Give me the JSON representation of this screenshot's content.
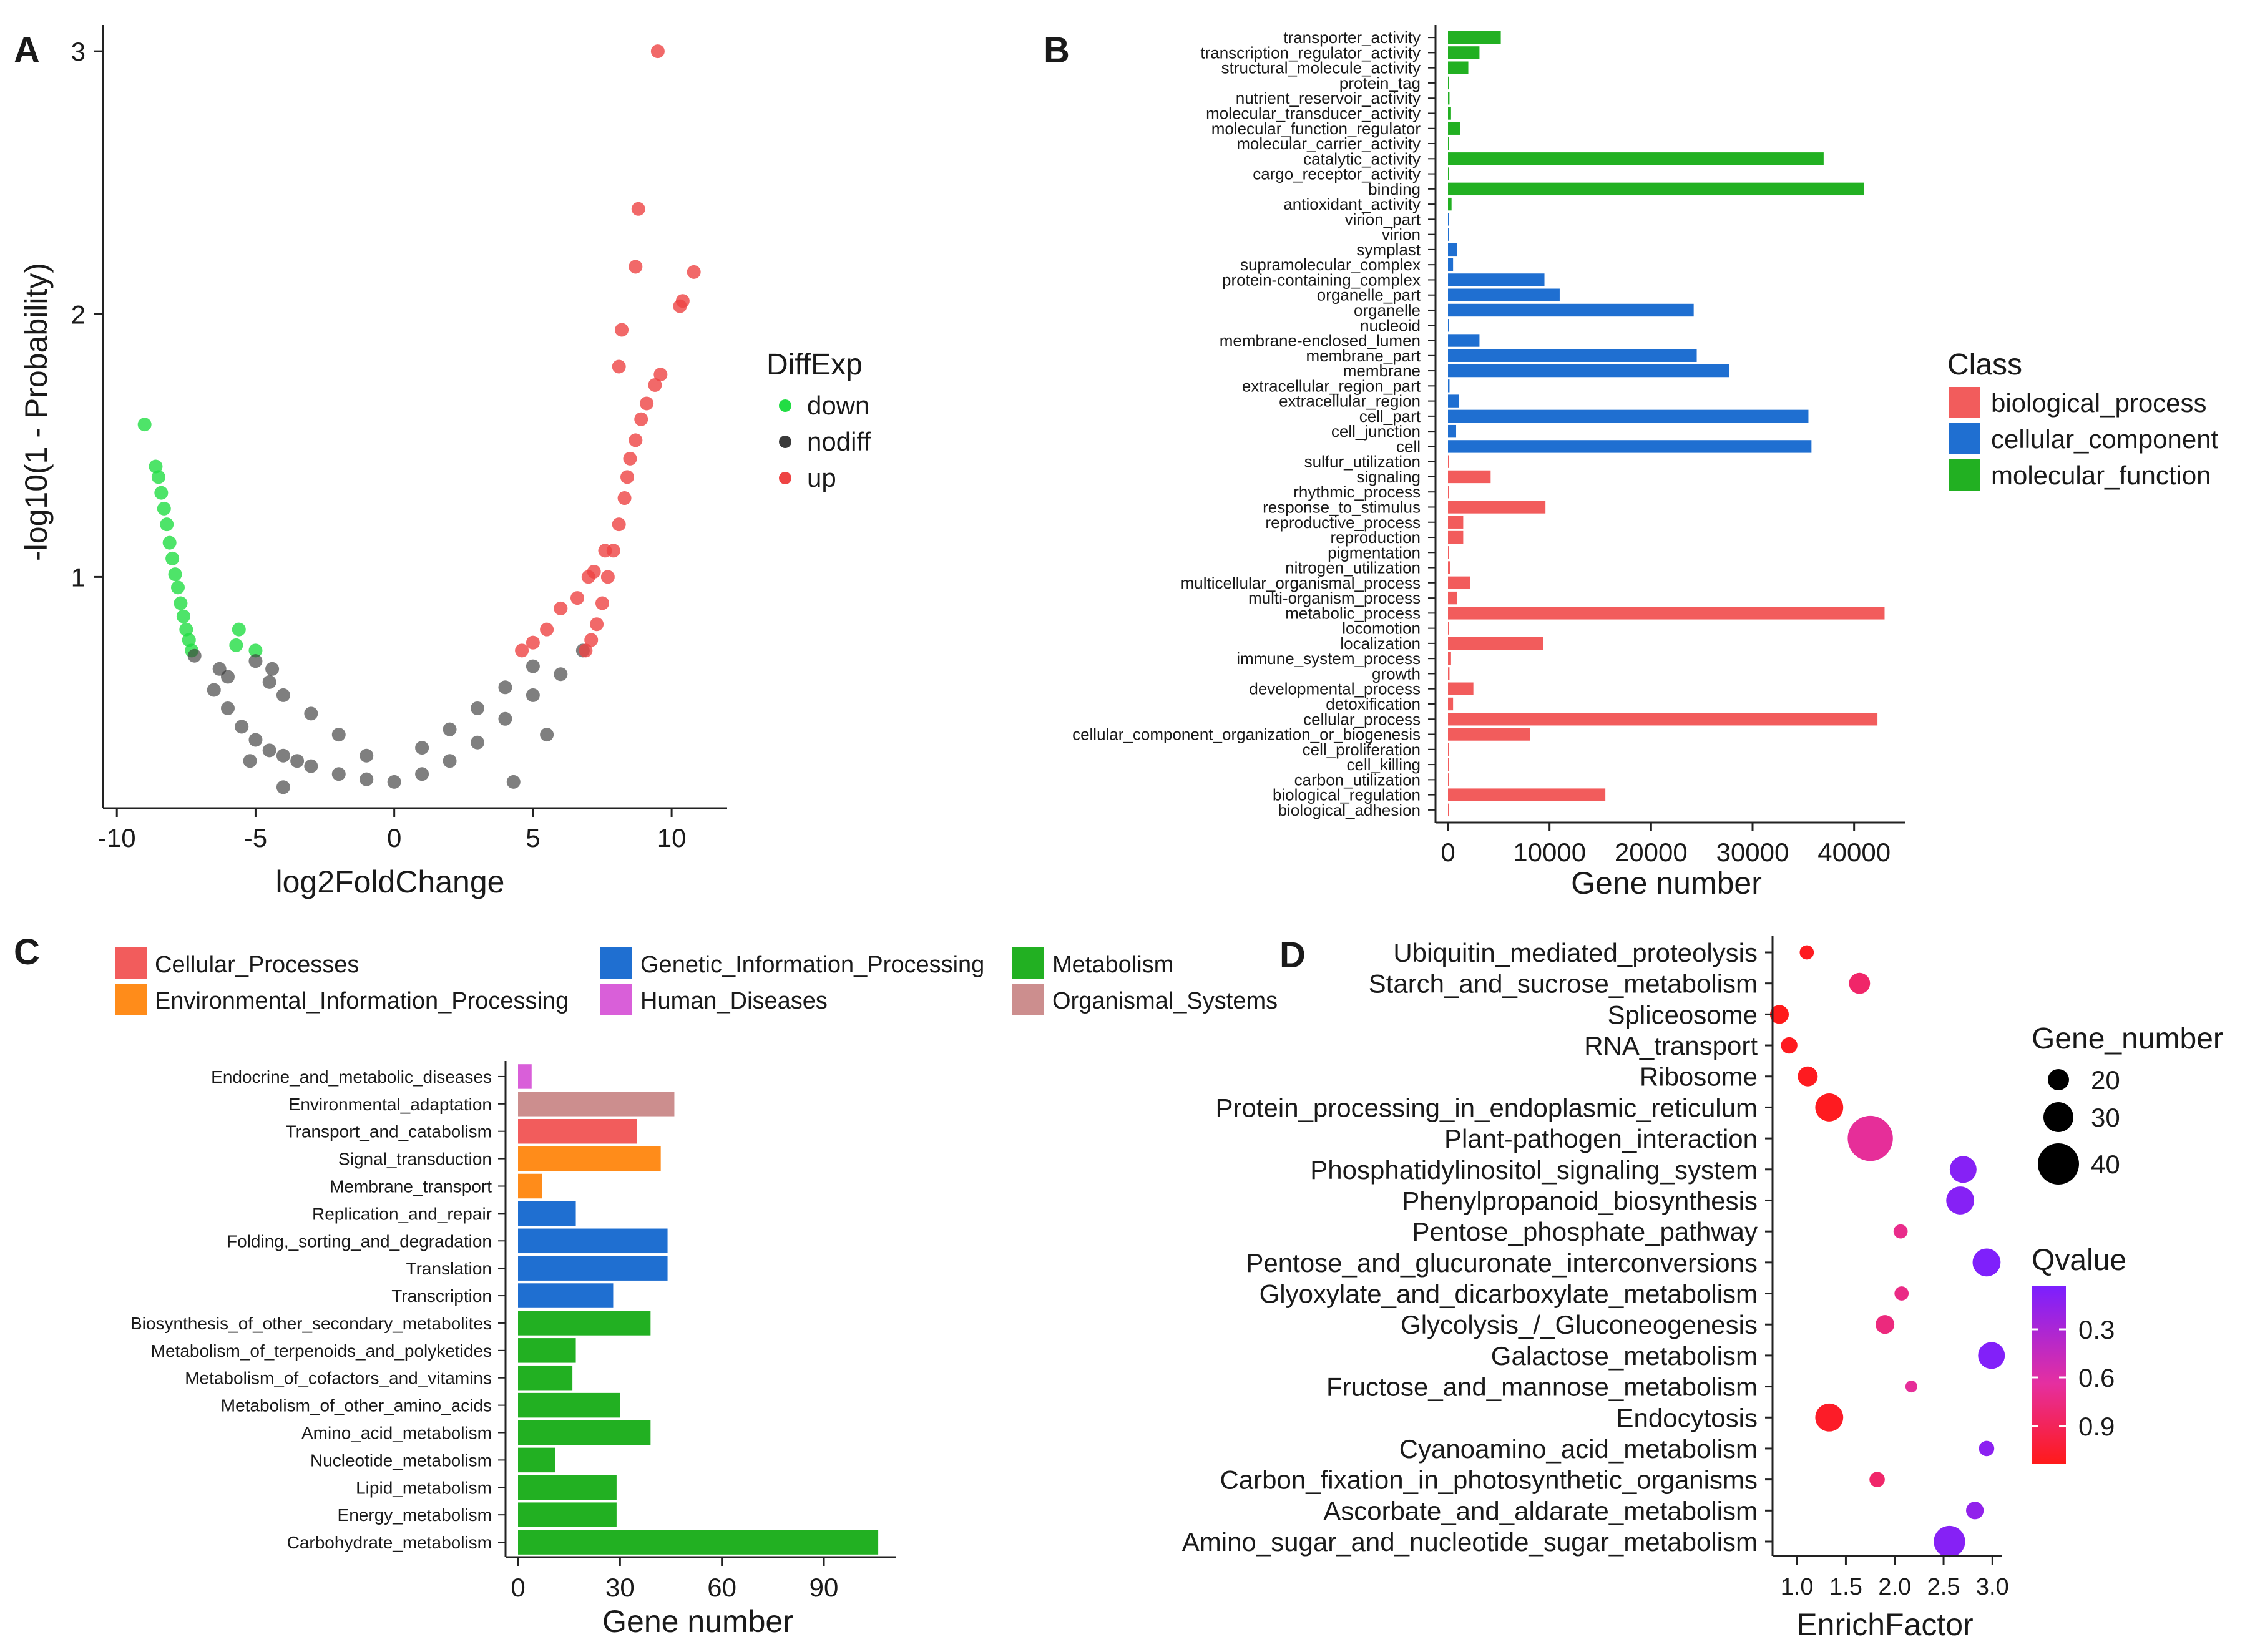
{
  "panels": {
    "A": {
      "label": "A",
      "chart_data": {
        "type": "scatter",
        "xlabel": "log2FoldChange",
        "ylabel": "-log10(1 - Probability)",
        "xlim": [
          -10.5,
          12
        ],
        "ylim": [
          0.12,
          3.1
        ],
        "x_ticks": [
          "-10",
          "-5",
          "0",
          "5",
          "10"
        ],
        "y_ticks": [
          "1",
          "2",
          "3"
        ],
        "legend": {
          "title": "DiffExp",
          "items": [
            {
              "label": "down",
              "color": "#22dd44"
            },
            {
              "label": "nodiff",
              "color": "#3a3a3a"
            },
            {
              "label": "up",
              "color": "#ee4444"
            }
          ]
        },
        "series": [
          {
            "name": "down",
            "color": "#22dd44",
            "points": [
              [
                -9.0,
                1.58
              ],
              [
                -8.6,
                1.42
              ],
              [
                -8.5,
                1.38
              ],
              [
                -8.4,
                1.32
              ],
              [
                -8.3,
                1.26
              ],
              [
                -8.2,
                1.2
              ],
              [
                -8.1,
                1.13
              ],
              [
                -8.0,
                1.07
              ],
              [
                -7.9,
                1.01
              ],
              [
                -7.8,
                0.96
              ],
              [
                -7.7,
                0.9
              ],
              [
                -7.6,
                0.85
              ],
              [
                -7.5,
                0.8
              ],
              [
                -7.4,
                0.76
              ],
              [
                -7.3,
                0.72
              ],
              [
                -5.6,
                0.8
              ],
              [
                -5.7,
                0.74
              ],
              [
                -5.0,
                0.72
              ]
            ]
          },
          {
            "name": "nodiff",
            "color": "#3a3a3a",
            "points": [
              [
                -7.2,
                0.7
              ],
              [
                -6.5,
                0.57
              ],
              [
                -6,
                0.5
              ],
              [
                -5.5,
                0.43
              ],
              [
                -5,
                0.38
              ],
              [
                -4.5,
                0.34
              ],
              [
                -4,
                0.32
              ],
              [
                -3.5,
                0.3
              ],
              [
                -3,
                0.28
              ],
              [
                -2,
                0.25
              ],
              [
                -1,
                0.23
              ],
              [
                0,
                0.22
              ],
              [
                1,
                0.25
              ],
              [
                2,
                0.3
              ],
              [
                3,
                0.37
              ],
              [
                4,
                0.46
              ],
              [
                5,
                0.55
              ],
              [
                6,
                0.63
              ],
              [
                6.8,
                0.72
              ],
              [
                -6,
                0.62
              ],
              [
                -5,
                0.68
              ],
              [
                -4.5,
                0.6
              ],
              [
                -4,
                0.55
              ],
              [
                -3,
                0.48
              ],
              [
                -2,
                0.4
              ],
              [
                -1,
                0.32
              ],
              [
                1,
                0.35
              ],
              [
                2,
                0.42
              ],
              [
                3,
                0.5
              ],
              [
                4,
                0.58
              ],
              [
                5,
                0.66
              ],
              [
                -6.3,
                0.65
              ],
              [
                -4.4,
                0.65
              ],
              [
                -5.2,
                0.3
              ],
              [
                -4,
                0.2
              ],
              [
                4.3,
                0.22
              ],
              [
                5.5,
                0.4
              ]
            ]
          },
          {
            "name": "up",
            "color": "#ee4444",
            "points": [
              [
                9.5,
                3.0
              ],
              [
                8.8,
                2.4
              ],
              [
                8.7,
                2.18
              ],
              [
                10.8,
                2.16
              ],
              [
                10.3,
                2.03
              ],
              [
                10.4,
                2.05
              ],
              [
                8.2,
                1.94
              ],
              [
                9.6,
                1.77
              ],
              [
                9.4,
                1.73
              ],
              [
                8.1,
                1.8
              ],
              [
                7.6,
                1.1
              ],
              [
                7.2,
                1.02
              ],
              [
                7.0,
                1.0
              ],
              [
                6.6,
                0.92
              ],
              [
                6.0,
                0.88
              ],
              [
                5.5,
                0.8
              ],
              [
                5.0,
                0.75
              ],
              [
                4.6,
                0.72
              ],
              [
                8.5,
                1.45
              ],
              [
                8.4,
                1.38
              ],
              [
                8.3,
                1.3
              ],
              [
                8.1,
                1.2
              ],
              [
                7.9,
                1.1
              ],
              [
                7.7,
                1.0
              ],
              [
                7.5,
                0.9
              ],
              [
                7.3,
                0.82
              ],
              [
                7.1,
                0.76
              ],
              [
                6.9,
                0.72
              ],
              [
                8.7,
                1.52
              ],
              [
                8.9,
                1.6
              ],
              [
                9.1,
                1.66
              ]
            ]
          }
        ]
      }
    },
    "B": {
      "label": "B",
      "chart_data": {
        "type": "bar",
        "orientation": "horizontal",
        "xlabel": "Gene number",
        "x_ticks": [
          "0",
          "10000",
          "20000",
          "30000",
          "40000"
        ],
        "xlim": [
          0,
          45000
        ],
        "legend": {
          "title": "Class",
          "items": [
            {
              "label": "biological_process",
              "color": "#f25c5c"
            },
            {
              "label": "cellular_component",
              "color": "#1f6fd1"
            },
            {
              "label": "molecular_function",
              "color": "#22b022"
            }
          ]
        },
        "categories": [
          "transporter_activity",
          "transcription_regulator_activity",
          "structural_molecule_activity",
          "protein_tag",
          "nutrient_reservoir_activity",
          "molecular_transducer_activity",
          "molecular_function_regulator",
          "molecular_carrier_activity",
          "catalytic_activity",
          "cargo_receptor_activity",
          "binding",
          "antioxidant_activity",
          "virion_part",
          "virion",
          "symplast",
          "supramolecular_complex",
          "protein-containing_complex",
          "organelle_part",
          "organelle",
          "nucleoid",
          "membrane-enclosed_lumen",
          "membrane_part",
          "membrane",
          "extracellular_region_part",
          "extracellular_region",
          "cell_part",
          "cell_junction",
          "cell",
          "sulfur_utilization",
          "signaling",
          "rhythmic_process",
          "response_to_stimulus",
          "reproductive_process",
          "reproduction",
          "pigmentation",
          "nitrogen_utilization",
          "multicellular_organismal_process",
          "multi-organism_process",
          "metabolic_process",
          "locomotion",
          "localization",
          "immune_system_process",
          "growth",
          "developmental_process",
          "detoxification",
          "cellular_process",
          "cellular_component_organization_or_biogenesis",
          "cell_proliferation",
          "cell_killing",
          "carbon_utilization",
          "biological_regulation",
          "biological_adhesion"
        ],
        "values": [
          5200,
          3100,
          2000,
          20,
          150,
          300,
          1200,
          30,
          37000,
          20,
          41000,
          350,
          120,
          15,
          900,
          500,
          9500,
          11000,
          24200,
          30,
          3100,
          24500,
          27700,
          150,
          1100,
          35500,
          800,
          35800,
          20,
          4200,
          100,
          9600,
          1500,
          1500,
          40,
          200,
          2200,
          900,
          43000,
          60,
          9400,
          300,
          150,
          2500,
          500,
          42300,
          8100,
          30,
          20,
          50,
          15500,
          40
        ],
        "classes": [
          "molecular_function",
          "molecular_function",
          "molecular_function",
          "molecular_function",
          "molecular_function",
          "molecular_function",
          "molecular_function",
          "molecular_function",
          "molecular_function",
          "molecular_function",
          "molecular_function",
          "molecular_function",
          "cellular_component",
          "cellular_component",
          "cellular_component",
          "cellular_component",
          "cellular_component",
          "cellular_component",
          "cellular_component",
          "cellular_component",
          "cellular_component",
          "cellular_component",
          "cellular_component",
          "cellular_component",
          "cellular_component",
          "cellular_component",
          "cellular_component",
          "cellular_component",
          "biological_process",
          "biological_process",
          "biological_process",
          "biological_process",
          "biological_process",
          "biological_process",
          "biological_process",
          "biological_process",
          "biological_process",
          "biological_process",
          "biological_process",
          "biological_process",
          "biological_process",
          "biological_process",
          "biological_process",
          "biological_process",
          "biological_process",
          "biological_process",
          "biological_process",
          "biological_process",
          "biological_process",
          "biological_process",
          "biological_process",
          "biological_process"
        ]
      }
    },
    "C": {
      "label": "C",
      "chart_data": {
        "type": "bar",
        "orientation": "horizontal",
        "xlabel": "Gene number",
        "x_ticks": [
          "0",
          "30",
          "60",
          "90"
        ],
        "xlim": [
          0,
          110
        ],
        "legend": {
          "items": [
            {
              "label": "Cellular_Processes",
              "color": "#f25c5c"
            },
            {
              "label": "Environmental_Information_Processing",
              "color": "#ff8c1a"
            },
            {
              "label": "Genetic_Information_Processing",
              "color": "#1f6fd1"
            },
            {
              "label": "Human_Diseases",
              "color": "#d95fd9"
            },
            {
              "label": "Metabolism",
              "color": "#22b022"
            },
            {
              "label": "Organismal_Systems",
              "color": "#cc8e8e"
            }
          ]
        },
        "categories": [
          "Endocrine_and_metabolic_diseases",
          "Environmental_adaptation",
          "Transport_and_catabolism",
          "Signal_transduction",
          "Membrane_transport",
          "Replication_and_repair",
          "Folding,_sorting_and_degradation",
          "Translation",
          "Transcription",
          "Biosynthesis_of_other_secondary_metabolites",
          "Metabolism_of_terpenoids_and_polyketides",
          "Metabolism_of_cofactors_and_vitamins",
          "Metabolism_of_other_amino_acids",
          "Amino_acid_metabolism",
          "Nucleotide_metabolism",
          "Lipid_metabolism",
          "Energy_metabolism",
          "Carbohydrate_metabolism"
        ],
        "values": [
          4,
          46,
          35,
          42,
          7,
          17,
          44,
          44,
          28,
          39,
          17,
          16,
          30,
          39,
          11,
          29,
          29,
          106
        ],
        "classes": [
          "Human_Diseases",
          "Organismal_Systems",
          "Cellular_Processes",
          "Environmental_Information_Processing",
          "Environmental_Information_Processing",
          "Genetic_Information_Processing",
          "Genetic_Information_Processing",
          "Genetic_Information_Processing",
          "Genetic_Information_Processing",
          "Metabolism",
          "Metabolism",
          "Metabolism",
          "Metabolism",
          "Metabolism",
          "Metabolism",
          "Metabolism",
          "Metabolism",
          "Metabolism"
        ]
      }
    },
    "D": {
      "label": "D",
      "chart_data": {
        "type": "scatter",
        "subtype": "bubble",
        "xlabel": "EnrichFactor",
        "x_ticks": [
          "1.0",
          "1.5",
          "2.0",
          "2.5",
          "3.0"
        ],
        "xlim": [
          0.75,
          3.1
        ],
        "size_legend": {
          "title": "Gene_number",
          "items": [
            {
              "label": "20",
              "value": 20
            },
            {
              "label": "30",
              "value": 30
            },
            {
              "label": "40",
              "value": 40
            }
          ]
        },
        "color_legend": {
          "title": "Qvalue",
          "ticks": [
            "0.3",
            "0.6",
            "0.9"
          ],
          "range": [
            0.05,
            1.0
          ],
          "low_color": "#7b1fff",
          "high_color": "#ff1a1a"
        },
        "categories": [
          "Ubiquitin_mediated_proteolysis",
          "Starch_and_sucrose_metabolism",
          "Spliceosome",
          "RNA_transport",
          "Ribosome",
          "Protein_processing_in_endoplasmic_reticulum",
          "Plant-pathogen_interaction",
          "Phosphatidylinositol_signaling_system",
          "Phenylpropanoid_biosynthesis",
          "Pentose_phosphate_pathway",
          "Pentose_and_glucuronate_interconversions",
          "Glyoxylate_and_dicarboxylate_metabolism",
          "Glycolysis_/_Gluconeogenesis",
          "Galactose_metabolism",
          "Fructose_and_mannose_metabolism",
          "Endocytosis",
          "Cyanoamino_acid_metabolism",
          "Carbon_fixation_in_photosynthetic_organisms",
          "Ascorbate_and_aldarate_metabolism",
          "Amino_sugar_and_nucleotide_sugar_metabolism"
        ],
        "enrich_factor": [
          1.1,
          1.64,
          0.82,
          0.92,
          1.11,
          1.33,
          1.75,
          2.7,
          2.67,
          2.06,
          2.94,
          2.07,
          1.9,
          2.99,
          2.17,
          1.33,
          2.94,
          1.82,
          2.82,
          2.56
        ],
        "gene_number": [
          18,
          24,
          22,
          20,
          23,
          30,
          45,
          29,
          30,
          18,
          30,
          18,
          22,
          29,
          16,
          30,
          19,
          19,
          21,
          33
        ],
        "qvalue": [
          0.98,
          0.72,
          1.0,
          0.98,
          0.98,
          0.98,
          0.55,
          0.1,
          0.1,
          0.6,
          0.07,
          0.62,
          0.65,
          0.08,
          0.55,
          0.95,
          0.12,
          0.72,
          0.15,
          0.1
        ]
      }
    }
  }
}
